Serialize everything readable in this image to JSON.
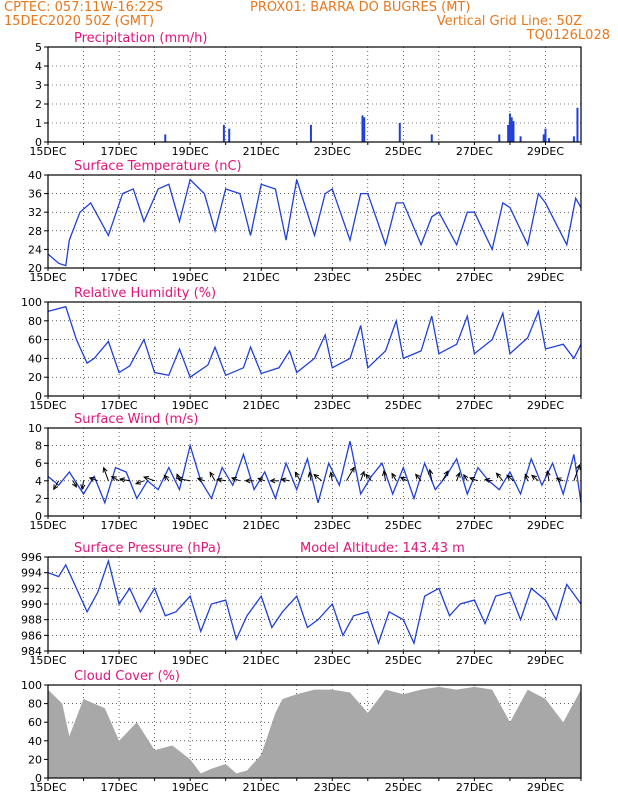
{
  "header": {
    "line1_left": "CPTEC:   057:11W-16:22S",
    "line1_right": "PROX01: BARRA DO BUGRES (MT)",
    "line2_left": "15DEC2020 50Z (GMT)",
    "line2_right": "Vertical Grid Line: 50Z",
    "line3_right": "TQ0126L028"
  },
  "colors": {
    "header": "#e6781e",
    "title": "#e0157a",
    "line": "#2040d8",
    "cloud": "#a8a8a8",
    "arrow": "#000000"
  },
  "x_axis": {
    "start_day": 15,
    "end_day": 30,
    "tick_labels": [
      "15DEC",
      "17DEC",
      "19DEC",
      "21DEC",
      "23DEC",
      "25DEC",
      "27DEC",
      "29DEC"
    ]
  },
  "chart_data": [
    {
      "type": "bar",
      "title": "Precipitation (mm/h)",
      "ylim": [
        0,
        5
      ],
      "yticks": [
        0,
        1,
        2,
        3,
        4,
        5
      ],
      "x_days": [
        18.3,
        19.95,
        20.1,
        22.4,
        23.85,
        23.9,
        24.9,
        25.8,
        27.7,
        27.95,
        28.0,
        28.05,
        28.1,
        28.3,
        28.95,
        29.0,
        29.1,
        29.8,
        29.9
      ],
      "values": [
        0.4,
        0.9,
        0.7,
        0.9,
        1.4,
        1.3,
        1.0,
        0.4,
        0.4,
        0.9,
        1.5,
        1.3,
        1.1,
        0.3,
        0.4,
        0.7,
        0.2,
        0.3,
        1.8
      ]
    },
    {
      "type": "line",
      "title": "Surface Temperature (nC)",
      "ylim": [
        20,
        40
      ],
      "yticks": [
        20,
        24,
        28,
        32,
        36,
        40
      ],
      "x": [
        15.0,
        15.3,
        15.5,
        15.6,
        15.9,
        16.2,
        16.7,
        17.1,
        17.4,
        17.7,
        18.1,
        18.4,
        18.7,
        19.0,
        19.4,
        19.7,
        20.0,
        20.4,
        20.7,
        21.0,
        21.4,
        21.7,
        22.0,
        22.5,
        22.8,
        23.0,
        23.5,
        23.8,
        24.0,
        24.5,
        24.8,
        25.0,
        25.5,
        25.8,
        26.0,
        26.5,
        26.8,
        27.0,
        27.5,
        27.8,
        28.0,
        28.5,
        28.8,
        29.0,
        29.6,
        29.85,
        30.0
      ],
      "values": [
        23,
        21,
        20.5,
        26,
        32,
        34,
        27,
        36,
        37,
        30,
        37,
        38,
        30,
        39,
        36,
        28,
        37,
        36,
        27,
        38,
        37,
        26,
        39,
        27,
        36,
        37,
        26,
        36,
        36,
        25,
        34,
        34,
        25,
        31,
        32,
        25,
        32,
        32,
        24,
        34,
        33,
        25,
        36,
        34,
        25,
        35,
        33
      ]
    },
    {
      "type": "line",
      "title": "Relative Humidity (%)",
      "ylim": [
        0,
        100
      ],
      "yticks": [
        0,
        20,
        40,
        60,
        80,
        100
      ],
      "x": [
        15.0,
        15.5,
        15.8,
        16.1,
        16.3,
        16.7,
        17.0,
        17.3,
        17.7,
        18.0,
        18.4,
        18.7,
        19.0,
        19.5,
        19.7,
        20.0,
        20.5,
        20.7,
        21.0,
        21.5,
        21.8,
        22.0,
        22.5,
        22.8,
        23.0,
        23.5,
        23.8,
        24.0,
        24.5,
        24.8,
        25.0,
        25.5,
        25.8,
        26.0,
        26.5,
        26.8,
        27.0,
        27.5,
        27.8,
        28.0,
        28.5,
        28.8,
        29.0,
        29.5,
        29.8,
        30.0
      ],
      "values": [
        90,
        95,
        60,
        35,
        40,
        58,
        25,
        32,
        60,
        25,
        22,
        50,
        20,
        33,
        52,
        22,
        30,
        52,
        24,
        30,
        48,
        25,
        40,
        65,
        30,
        40,
        75,
        30,
        48,
        80,
        40,
        48,
        85,
        45,
        55,
        85,
        45,
        60,
        88,
        45,
        62,
        90,
        50,
        55,
        40,
        55
      ]
    },
    {
      "type": "line",
      "title": "Surface Wind (m/s)",
      "ylim": [
        0,
        10
      ],
      "yticks": [
        0,
        2,
        4,
        6,
        8,
        10
      ],
      "x": [
        15.0,
        15.3,
        15.6,
        16.0,
        16.3,
        16.6,
        16.9,
        17.2,
        17.5,
        17.8,
        18.1,
        18.4,
        18.7,
        19.0,
        19.3,
        19.6,
        19.9,
        20.2,
        20.5,
        20.8,
        21.1,
        21.4,
        21.7,
        22.0,
        22.3,
        22.6,
        22.9,
        23.2,
        23.5,
        23.8,
        24.1,
        24.4,
        24.7,
        25.0,
        25.3,
        25.6,
        25.9,
        26.2,
        26.5,
        26.8,
        27.1,
        27.4,
        27.7,
        28.0,
        28.3,
        28.6,
        28.9,
        29.2,
        29.5,
        29.8,
        30.0
      ],
      "values": [
        4.5,
        3.5,
        5.0,
        2.5,
        4.5,
        1.5,
        5.5,
        5.0,
        2.0,
        4.0,
        3.0,
        5.5,
        3.0,
        8.0,
        4.0,
        2.0,
        5.5,
        3.5,
        7.0,
        3.0,
        5.0,
        2.0,
        6.0,
        3.0,
        6.5,
        1.5,
        6.0,
        3.5,
        8.5,
        2.5,
        4.5,
        6.0,
        2.5,
        5.5,
        2.0,
        6.0,
        3.0,
        4.5,
        6.5,
        2.5,
        5.5,
        4.0,
        3.0,
        5.0,
        2.5,
        6.5,
        3.5,
        6.0,
        2.5,
        7.0,
        1.5
      ]
    },
    {
      "type": "line",
      "title": "Surface Pressure (hPa)",
      "annotation": "Model Altitude: 143.43 m",
      "ylim": [
        984,
        996
      ],
      "yticks": [
        984,
        986,
        988,
        990,
        992,
        994,
        996
      ],
      "x": [
        15.0,
        15.3,
        15.5,
        15.8,
        16.1,
        16.4,
        16.7,
        17.0,
        17.3,
        17.6,
        18.0,
        18.3,
        18.6,
        19.0,
        19.3,
        19.6,
        20.0,
        20.3,
        20.6,
        21.0,
        21.3,
        21.6,
        22.0,
        22.3,
        22.6,
        23.0,
        23.3,
        23.6,
        24.0,
        24.3,
        24.6,
        25.0,
        25.3,
        25.6,
        26.0,
        26.3,
        26.6,
        27.0,
        27.3,
        27.6,
        28.0,
        28.3,
        28.6,
        29.0,
        29.3,
        29.6,
        30.0
      ],
      "values": [
        994,
        993.5,
        995,
        992,
        989,
        991.5,
        995.5,
        990,
        992,
        989,
        992,
        988.5,
        989,
        991,
        986.5,
        990,
        990.5,
        985.5,
        988.5,
        991,
        987,
        989,
        991,
        987,
        988,
        990,
        986,
        988.5,
        989,
        985,
        989,
        988,
        985,
        991,
        992,
        988.5,
        990,
        990.5,
        987.5,
        991,
        991.5,
        988,
        992,
        990.5,
        988,
        992.5,
        990
      ]
    },
    {
      "type": "area",
      "title": "Cloud Cover (%)",
      "ylim": [
        0,
        100
      ],
      "yticks": [
        0,
        20,
        40,
        60,
        80,
        100
      ],
      "x": [
        15.0,
        15.4,
        15.6,
        16.0,
        16.6,
        17.0,
        17.5,
        18.0,
        18.5,
        19.0,
        19.3,
        19.6,
        20.0,
        20.3,
        20.6,
        21.0,
        21.4,
        21.6,
        22.0,
        22.5,
        23.0,
        23.5,
        24.0,
        24.5,
        25.0,
        25.5,
        26.0,
        26.5,
        27.0,
        27.5,
        28.0,
        28.5,
        29.0,
        29.5,
        30.0
      ],
      "values": [
        95,
        80,
        45,
        85,
        75,
        40,
        60,
        30,
        35,
        20,
        5,
        10,
        15,
        5,
        8,
        25,
        70,
        85,
        90,
        95,
        95,
        92,
        70,
        95,
        90,
        95,
        98,
        95,
        98,
        95,
        60,
        95,
        85,
        60,
        95
      ]
    }
  ],
  "wind_arrows": {
    "x_days": [
      15.3,
      15.7,
      16.0,
      16.4,
      16.7,
      17.0,
      17.3,
      17.7,
      18.0,
      18.4,
      18.7,
      19.0,
      19.4,
      19.7,
      20.0,
      20.4,
      20.8,
      21.1,
      21.5,
      21.8,
      22.1,
      22.4,
      22.7,
      23.0,
      23.4,
      23.8,
      24.1,
      24.5,
      24.8,
      25.1,
      25.5,
      25.8,
      26.1,
      26.5,
      26.8,
      27.1,
      27.5,
      27.8,
      28.1,
      28.5,
      28.8,
      29.1,
      29.5,
      29.8
    ],
    "dir_deg": [
      120,
      60,
      100,
      200,
      250,
      210,
      190,
      160,
      200,
      230,
      250,
      190,
      200,
      240,
      190,
      200,
      180,
      200,
      180,
      190,
      240,
      260,
      220,
      260,
      300,
      290,
      230,
      260,
      240,
      210,
      230,
      260,
      300,
      290,
      240,
      200,
      190,
      230,
      220,
      250,
      220,
      260,
      200,
      290
    ],
    "length": [
      0.7,
      0.5,
      0.6,
      0.6,
      1.0,
      0.6,
      0.7,
      0.6,
      0.8,
      0.5,
      0.5,
      0.9,
      0.5,
      0.7,
      0.6,
      0.6,
      0.6,
      0.5,
      0.6,
      0.6,
      0.7,
      0.6,
      0.7,
      0.6,
      1.1,
      0.7,
      0.6,
      0.7,
      0.6,
      0.5,
      0.6,
      0.8,
      0.8,
      0.6,
      0.5,
      0.6,
      0.5,
      0.7,
      0.6,
      0.5,
      0.6,
      0.7,
      0.5,
      1.2
    ]
  }
}
